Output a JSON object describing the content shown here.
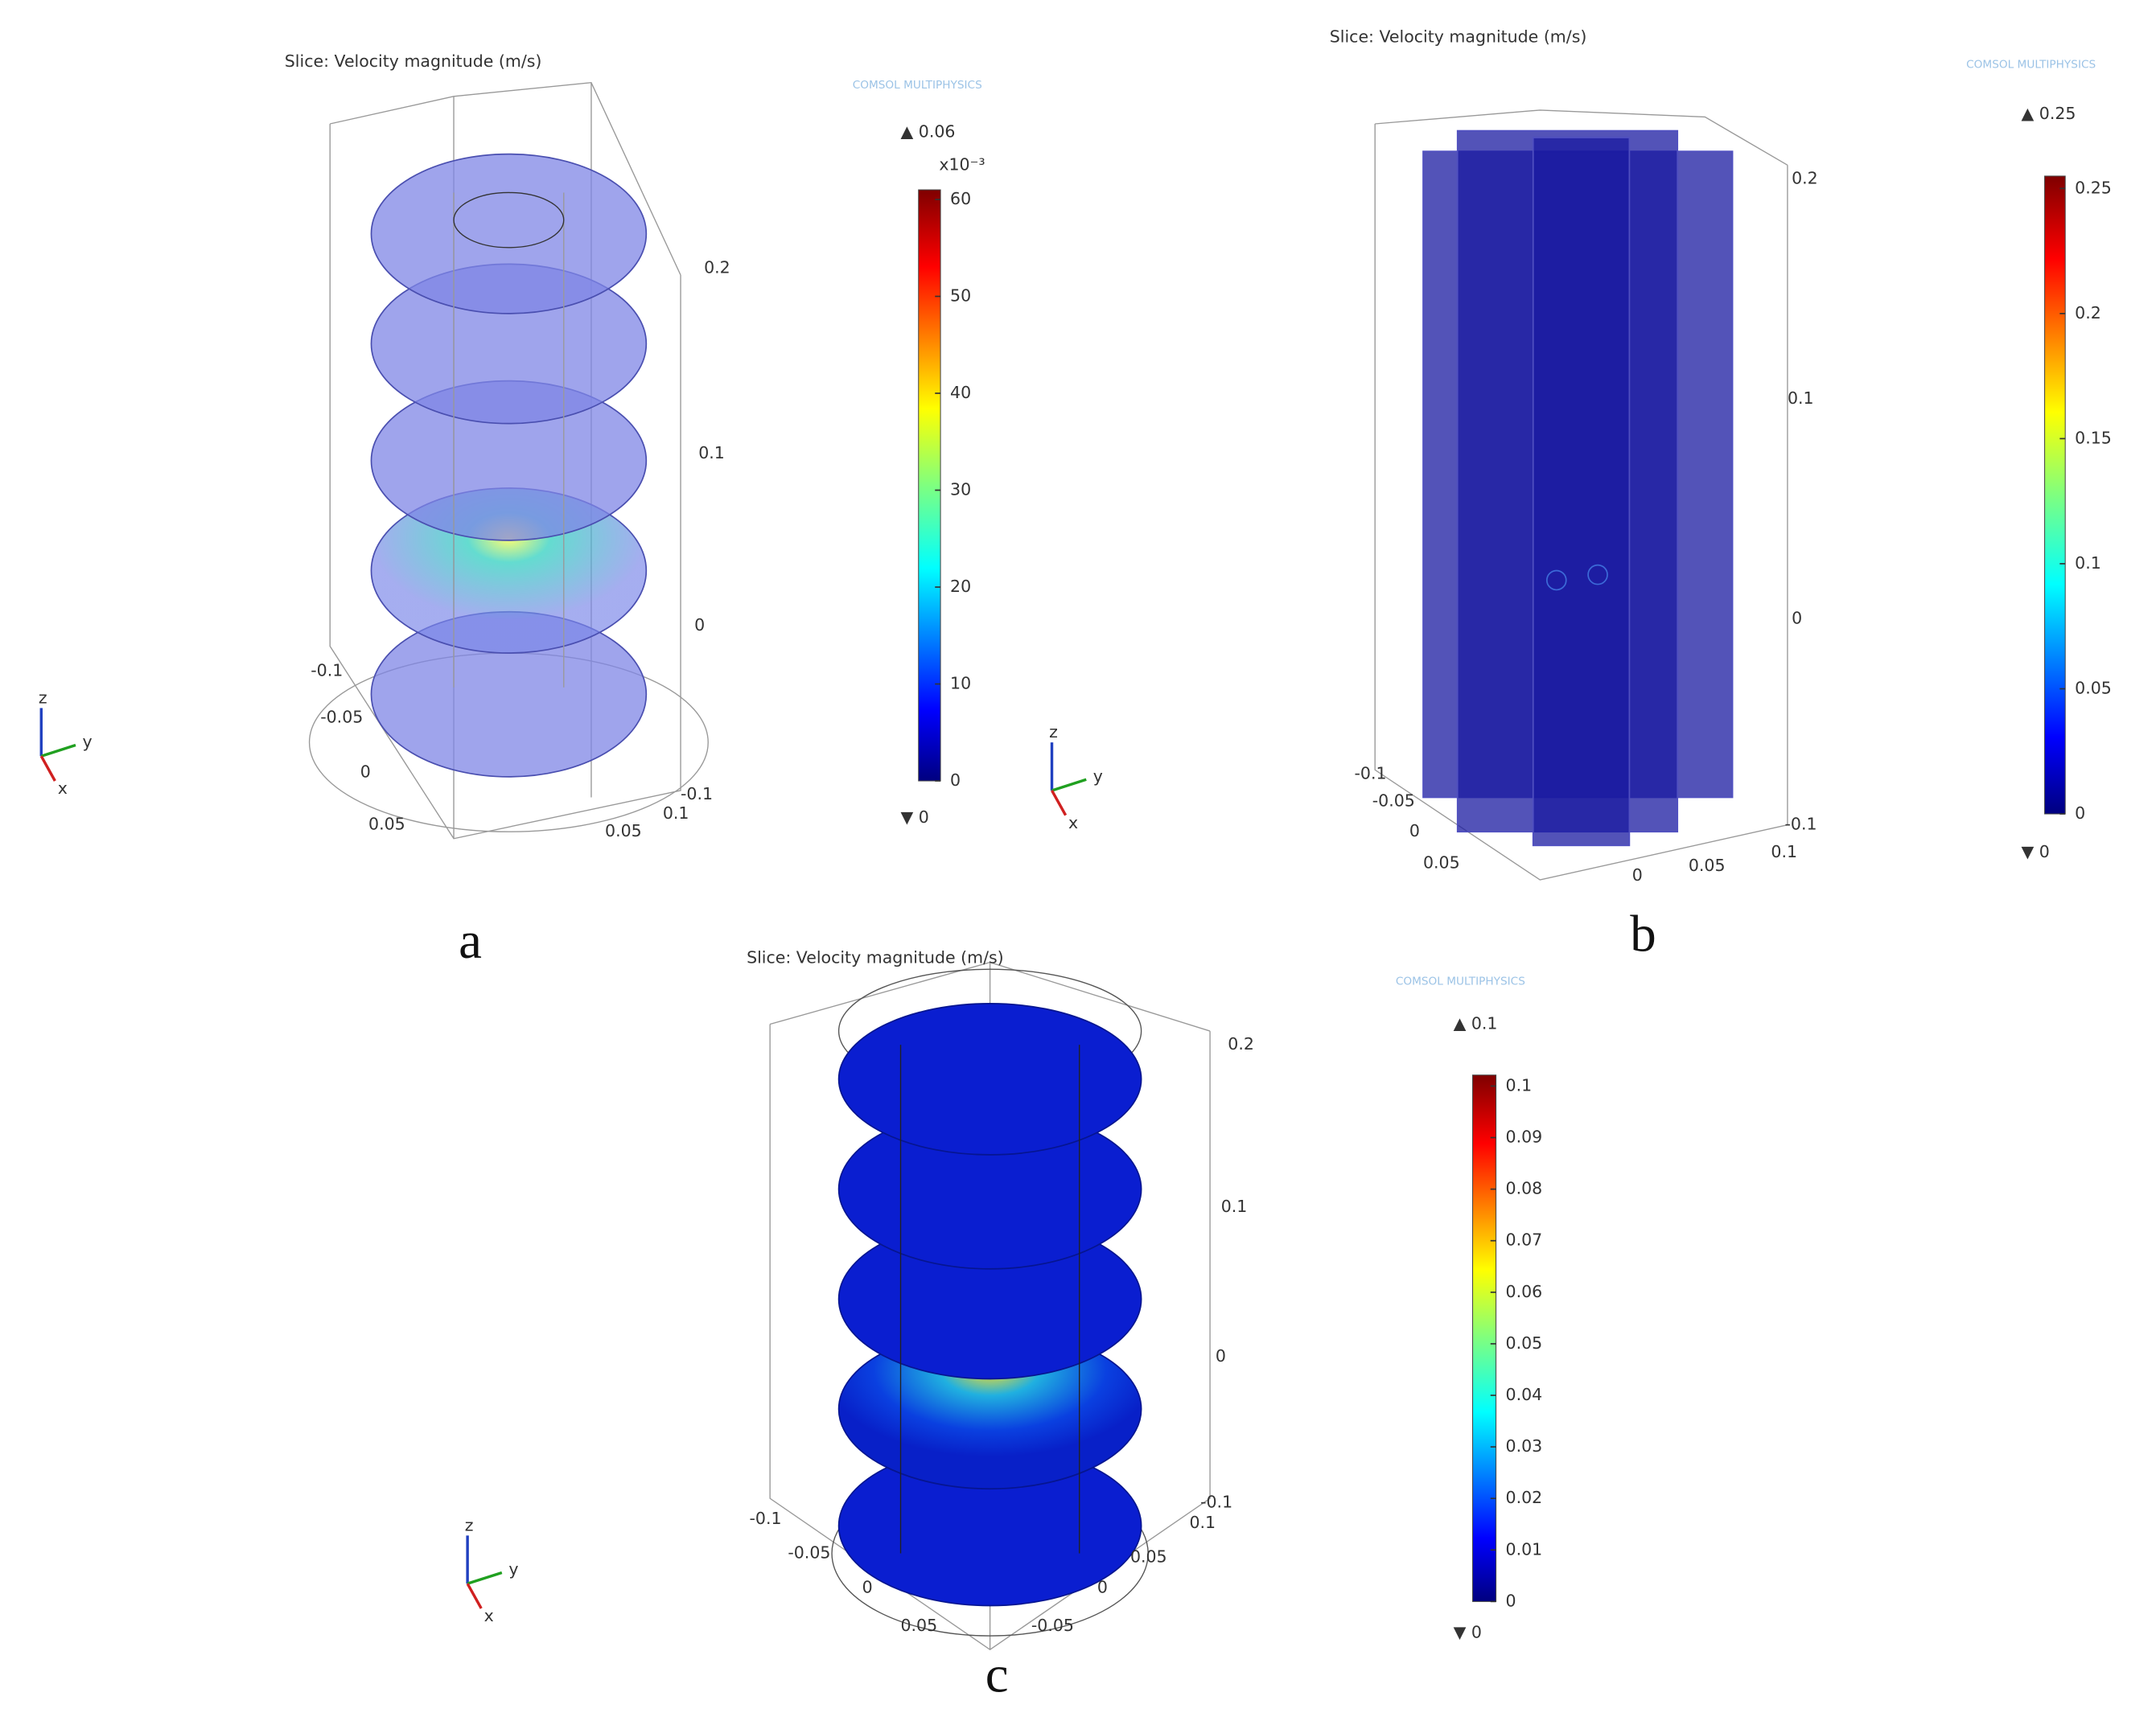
{
  "panels": [
    {
      "label": "a",
      "title": "Slice: Velocity magnitude (m/s)",
      "logo": "COMSOL MULTIPHYSICS",
      "max": "▲ 0.06",
      "min": "▼ 0",
      "exponent": "x10⁻³",
      "colorbar_ticks": [
        "0",
        "10",
        "20",
        "30",
        "40",
        "50",
        "60"
      ],
      "axis_ticks": [
        "0.2",
        "0.1",
        "0",
        "-0.1",
        "-0.05",
        "0",
        "0.05",
        "0.05",
        "0.1",
        "-0.1"
      ],
      "triad": [
        "z",
        "y",
        "x"
      ]
    },
    {
      "label": "b",
      "title": "Slice: Velocity magnitude (m/s)",
      "logo": "COMSOL MULTIPHYSICS",
      "max": "▲ 0.25",
      "min": "▼ 0",
      "colorbar_ticks": [
        "0",
        "0.05",
        "0.1",
        "0.15",
        "0.2",
        "0.25"
      ],
      "axis_ticks": [
        "0.2",
        "0.1",
        "0",
        "-0.1",
        "-0.05",
        "0",
        "0.05",
        "0",
        "0.05",
        "0.1",
        "-0.1"
      ],
      "triad": [
        "z",
        "y",
        "x"
      ]
    },
    {
      "label": "c",
      "title": "Slice: Velocity magnitude (m/s)",
      "logo": "COMSOL MULTIPHYSICS",
      "max": "▲ 0.1",
      "min": "▼ 0",
      "colorbar_ticks": [
        "0",
        "0.01",
        "0.02",
        "0.03",
        "0.04",
        "0.05",
        "0.06",
        "0.07",
        "0.08",
        "0.09",
        "0.1"
      ],
      "axis_ticks": [
        "0.2",
        "0.1",
        "0",
        "-0.1",
        "-0.05",
        "0",
        "0.05",
        "-0.05",
        "0",
        "0.05",
        "0.1",
        "-0.1"
      ],
      "triad": [
        "z",
        "y",
        "x"
      ]
    }
  ]
}
